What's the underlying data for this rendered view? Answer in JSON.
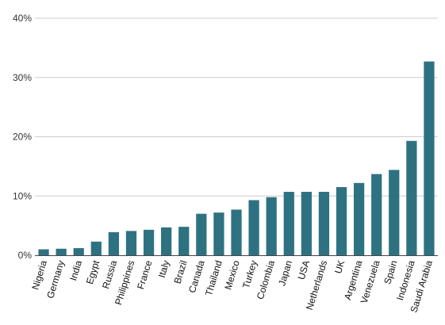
{
  "chart_data": {
    "type": "bar",
    "categories": [
      "Nigeria",
      "Germany",
      "India",
      "Egypt",
      "Russia",
      "Philippines",
      "France",
      "Italy",
      "Brazil",
      "Canada",
      "Thailand",
      "Mexico",
      "Turkey",
      "Colombia",
      "Japan",
      "USA",
      "Netherlands",
      "UK",
      "Argentina",
      "Venezuela",
      "Spain",
      "Indonesia",
      "Saudi Arabia"
    ],
    "values": [
      1.0,
      1.1,
      1.2,
      2.3,
      3.9,
      4.1,
      4.3,
      4.7,
      4.8,
      7.0,
      7.2,
      7.7,
      9.3,
      9.8,
      10.7,
      10.7,
      10.7,
      11.5,
      12.2,
      13.7,
      14.4,
      19.3,
      32.7
    ],
    "yticks": [
      0,
      10,
      20,
      30,
      40
    ],
    "ytick_labels": [
      "0%",
      "10%",
      "20%",
      "30%",
      "40%"
    ],
    "ylim": [
      0,
      40
    ],
    "grid": true,
    "title": "",
    "xlabel": "",
    "ylabel": "",
    "colors": {
      "bar": "#2e7282",
      "grid": "#cccccc",
      "axis": "#444444"
    }
  }
}
